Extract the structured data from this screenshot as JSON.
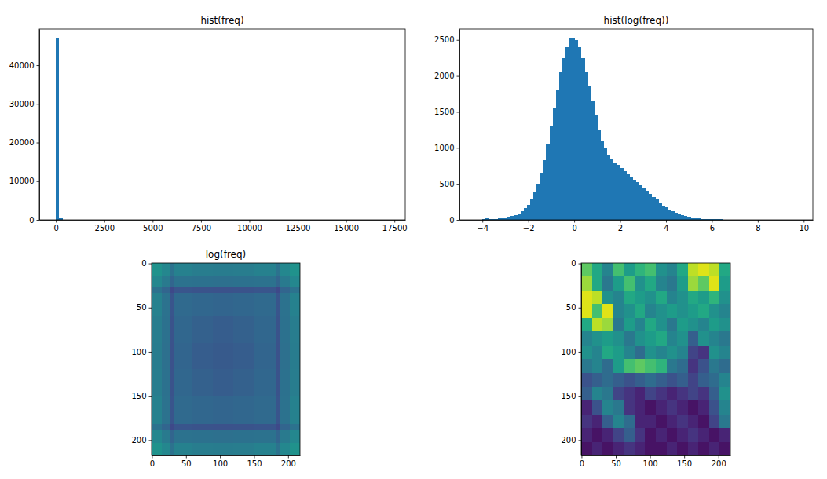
{
  "chart_data": [
    {
      "type": "histogram",
      "title": "hist(freq)",
      "color": "#1f77b4",
      "bins": [
        0,
        172,
        344,
        516,
        688,
        860,
        1032,
        1204,
        1376,
        1548,
        1720,
        1892,
        2064,
        2236,
        2408,
        2580,
        2752,
        2924,
        3096,
        3268,
        3440,
        3612,
        3784,
        3956,
        4128,
        4300,
        4472,
        4644,
        4816,
        4988,
        5160,
        5332,
        5504,
        5676,
        5848,
        6020,
        6192,
        6364,
        6536,
        6708,
        6880,
        7052,
        7224,
        7396,
        7568,
        7740,
        7912,
        8084,
        8256,
        8428,
        8600,
        8772,
        8944,
        9116,
        9288,
        9460,
        9632,
        9804,
        9976,
        10148,
        10320,
        10492,
        10664,
        10836,
        11008,
        11180,
        11352,
        11524,
        11696,
        11868,
        12040,
        12212,
        12384,
        12556,
        12728,
        12900,
        13072,
        13244,
        13416,
        13588,
        13760,
        13932,
        14104,
        14276,
        14448,
        14620,
        14792,
        14964,
        15136,
        15308,
        15480,
        15652,
        15824,
        15996,
        16168,
        16340,
        16512,
        16684,
        16856,
        17028,
        17200
      ],
      "counts": [
        47000,
        400,
        60,
        20,
        12,
        8,
        5,
        4,
        3,
        2,
        2,
        1,
        1,
        1,
        0,
        1,
        0,
        0,
        1,
        0,
        0,
        0,
        1,
        0,
        0,
        0,
        0,
        0,
        0,
        0,
        0,
        0,
        0,
        0,
        0,
        1,
        0,
        0,
        0,
        0,
        0,
        0,
        0,
        0,
        0,
        0,
        0,
        0,
        0,
        0,
        0,
        0,
        0,
        0,
        0,
        0,
        0,
        0,
        0,
        0,
        0,
        0,
        0,
        0,
        0,
        0,
        0,
        0,
        0,
        0,
        0,
        0,
        0,
        0,
        0,
        0,
        0,
        0,
        0,
        0,
        0,
        0,
        0,
        0,
        0,
        0,
        0,
        0,
        0,
        0,
        0,
        0,
        0,
        0,
        0,
        0,
        0,
        0,
        0,
        1
      ],
      "xlim": [
        -860,
        18060
      ],
      "ylim": [
        0,
        49350
      ],
      "xticks": [
        0,
        2500,
        5000,
        7500,
        10000,
        12500,
        15000,
        17500
      ],
      "yticks": [
        0,
        10000,
        20000,
        30000,
        40000
      ]
    },
    {
      "type": "histogram",
      "title": "hist(log(freq))",
      "color": "#1f77b4",
      "bins": [
        -4.3,
        -4.16,
        -4.02,
        -3.88,
        -3.74,
        -3.6,
        -3.46,
        -3.32,
        -3.18,
        -3.04,
        -2.9,
        -2.76,
        -2.62,
        -2.48,
        -2.34,
        -2.2,
        -2.06,
        -1.92,
        -1.78,
        -1.64,
        -1.5,
        -1.36,
        -1.22,
        -1.08,
        -0.94,
        -0.8,
        -0.66,
        -0.52,
        -0.38,
        -0.24,
        -0.1,
        0.04,
        0.18,
        0.32,
        0.46,
        0.6,
        0.74,
        0.88,
        1.02,
        1.16,
        1.3,
        1.44,
        1.58,
        1.72,
        1.86,
        2.0,
        2.14,
        2.28,
        2.42,
        2.56,
        2.7,
        2.84,
        2.98,
        3.12,
        3.26,
        3.4,
        3.54,
        3.68,
        3.82,
        3.96,
        4.1,
        4.24,
        4.38,
        4.52,
        4.66,
        4.8,
        4.94,
        5.08,
        5.22,
        5.36,
        5.5,
        5.64,
        5.78,
        5.92,
        6.06,
        6.2,
        6.34,
        6.48,
        6.62,
        6.76,
        6.9,
        7.04,
        7.18,
        7.32,
        7.46,
        7.6,
        7.74,
        7.88,
        8.02,
        8.16,
        8.3,
        8.44,
        8.58,
        8.72,
        8.86,
        9.0,
        9.14,
        9.28,
        9.42,
        9.56,
        9.7
      ],
      "counts": [
        5,
        0,
        15,
        20,
        15,
        10,
        15,
        20,
        25,
        30,
        40,
        50,
        70,
        90,
        120,
        160,
        210,
        280,
        380,
        500,
        650,
        830,
        1050,
        1300,
        1550,
        1800,
        2050,
        2250,
        2400,
        2520,
        2520,
        2500,
        2400,
        2250,
        2050,
        1850,
        1650,
        1450,
        1250,
        1100,
        1000,
        900,
        850,
        800,
        760,
        720,
        680,
        640,
        600,
        560,
        520,
        480,
        440,
        400,
        360,
        320,
        280,
        240,
        200,
        170,
        140,
        120,
        100,
        80,
        65,
        50,
        40,
        30,
        25,
        20,
        15,
        12,
        10,
        8,
        6,
        12,
        8,
        5,
        4,
        3,
        2,
        2,
        1,
        1,
        0,
        0,
        0,
        0,
        1,
        0,
        0,
        0,
        0,
        0,
        0,
        0,
        0,
        1,
        0,
        1
      ],
      "xlim": [
        -5.0,
        10.4
      ],
      "ylim": [
        0,
        2650
      ],
      "xticks": [
        {
          "value": -4,
          "label": "−4"
        },
        {
          "value": -2,
          "label": "−2"
        },
        0,
        2,
        4,
        6,
        8,
        10
      ],
      "yticks": [
        0,
        500,
        1000,
        1500,
        2000,
        2500
      ]
    },
    {
      "type": "heatmap",
      "title": "log(freq)",
      "color": "viridis",
      "x_edges": [
        -0.5,
        14,
        27,
        33,
        60,
        90,
        120,
        150,
        182,
        188,
        203,
        217.5
      ],
      "y_edges": [
        -0.5,
        14,
        27,
        33,
        60,
        90,
        120,
        150,
        182,
        188,
        203,
        217.5
      ],
      "cells": [
        [
          2.8,
          2.2,
          1.0,
          1.8,
          1.6,
          1.5,
          1.6,
          1.8,
          1.0,
          2.2,
          2.8
        ],
        [
          2.2,
          1.4,
          0.2,
          1.0,
          0.9,
          0.8,
          0.9,
          1.0,
          0.2,
          1.4,
          2.2
        ],
        [
          1.0,
          0.2,
          -1.2,
          -0.6,
          -0.7,
          -0.8,
          -0.7,
          -0.6,
          -1.2,
          0.2,
          1.0
        ],
        [
          1.8,
          1.0,
          -0.6,
          0.5,
          0.3,
          0.2,
          0.3,
          0.5,
          -0.6,
          1.0,
          1.8
        ],
        [
          1.6,
          0.9,
          -0.7,
          0.3,
          0.0,
          -0.2,
          0.0,
          0.3,
          -0.7,
          0.9,
          1.6
        ],
        [
          1.5,
          0.8,
          -0.8,
          0.2,
          -0.2,
          -0.4,
          -0.2,
          0.2,
          -0.8,
          0.8,
          1.5
        ],
        [
          1.6,
          0.9,
          -0.7,
          0.3,
          0.0,
          -0.2,
          0.0,
          0.3,
          -0.7,
          0.9,
          1.6
        ],
        [
          1.8,
          1.0,
          -0.6,
          0.5,
          0.3,
          0.2,
          0.3,
          0.5,
          -0.6,
          1.0,
          1.8
        ],
        [
          1.0,
          0.2,
          -1.2,
          -0.6,
          -0.7,
          -0.8,
          -0.7,
          -0.6,
          -1.2,
          0.2,
          1.0
        ],
        [
          2.2,
          1.4,
          0.2,
          1.0,
          0.9,
          0.8,
          0.9,
          1.0,
          0.2,
          1.4,
          2.2
        ],
        [
          2.8,
          2.2,
          1.0,
          1.8,
          1.6,
          1.5,
          1.6,
          1.8,
          1.0,
          2.2,
          2.8
        ]
      ],
      "zlim": [
        -4.3,
        9.7
      ],
      "xlim": [
        -0.5,
        217.5
      ],
      "ylim": [
        217.5,
        -0.5
      ],
      "xticks": [
        0,
        50,
        100,
        150,
        200
      ],
      "yticks": [
        0,
        50,
        100,
        150,
        200
      ]
    },
    {
      "type": "heatmap",
      "color": "viridis",
      "x_edges": [
        -0.5,
        15,
        31,
        46,
        62,
        77,
        93,
        108,
        124,
        140,
        155,
        171,
        186,
        202,
        217.5
      ],
      "y_edges": [
        -0.5,
        15,
        31,
        46,
        62,
        77,
        93,
        108,
        124,
        140,
        155,
        171,
        186,
        202,
        217.5
      ],
      "cells": [
        [
          0.75,
          0.6,
          0.45,
          0.7,
          0.55,
          0.65,
          0.7,
          0.5,
          0.45,
          0.6,
          0.9,
          0.95,
          0.9,
          0.6
        ],
        [
          0.85,
          0.6,
          0.4,
          0.55,
          0.7,
          0.5,
          0.6,
          0.45,
          0.4,
          0.55,
          0.85,
          0.75,
          0.95,
          0.55
        ],
        [
          0.95,
          0.9,
          0.5,
          0.45,
          0.6,
          0.55,
          0.5,
          0.6,
          0.45,
          0.5,
          0.6,
          0.55,
          0.65,
          0.5
        ],
        [
          0.95,
          0.7,
          0.95,
          0.45,
          0.5,
          0.6,
          0.45,
          0.5,
          0.55,
          0.5,
          0.55,
          0.6,
          0.5,
          0.45
        ],
        [
          0.6,
          0.9,
          0.85,
          0.4,
          0.55,
          0.45,
          0.6,
          0.5,
          0.4,
          0.55,
          0.5,
          0.45,
          0.55,
          0.5
        ],
        [
          0.45,
          0.5,
          0.55,
          0.5,
          0.4,
          0.5,
          0.55,
          0.6,
          0.45,
          0.5,
          0.3,
          0.5,
          0.45,
          0.4
        ],
        [
          0.5,
          0.45,
          0.6,
          0.55,
          0.45,
          0.35,
          0.5,
          0.45,
          0.5,
          0.45,
          0.2,
          0.15,
          0.5,
          0.45
        ],
        [
          0.4,
          0.45,
          0.35,
          0.55,
          0.7,
          0.75,
          0.7,
          0.65,
          0.4,
          0.35,
          0.15,
          0.25,
          0.4,
          0.35
        ],
        [
          0.25,
          0.3,
          0.35,
          0.3,
          0.25,
          0.3,
          0.35,
          0.3,
          0.25,
          0.3,
          0.2,
          0.3,
          0.35,
          0.45
        ],
        [
          0.3,
          0.45,
          0.4,
          0.2,
          0.15,
          0.1,
          0.2,
          0.15,
          0.1,
          0.15,
          0.2,
          0.15,
          0.3,
          0.5
        ],
        [
          0.1,
          0.25,
          0.45,
          0.4,
          0.15,
          0.1,
          0.05,
          0.1,
          0.15,
          0.1,
          0.05,
          0.1,
          0.25,
          0.45
        ],
        [
          0.15,
          0.1,
          0.3,
          0.45,
          0.35,
          0.1,
          0.1,
          0.05,
          0.1,
          0.15,
          0.1,
          0.05,
          0.2,
          0.4
        ],
        [
          0.1,
          0.05,
          0.1,
          0.2,
          0.3,
          0.15,
          0.05,
          0.1,
          0.05,
          0.1,
          0.15,
          0.1,
          0.05,
          0.1
        ],
        [
          0.05,
          0.1,
          0.05,
          0.1,
          0.15,
          0.1,
          0.05,
          0.05,
          0.1,
          0.05,
          0.1,
          0.05,
          0.1,
          0.05
        ]
      ],
      "zlim": [
        0,
        1
      ],
      "xlim": [
        -0.5,
        217.5
      ],
      "ylim": [
        217.5,
        -0.5
      ],
      "xticks": [
        0,
        50,
        100,
        150,
        200
      ],
      "yticks": [
        0,
        50,
        100,
        150,
        200
      ]
    }
  ]
}
